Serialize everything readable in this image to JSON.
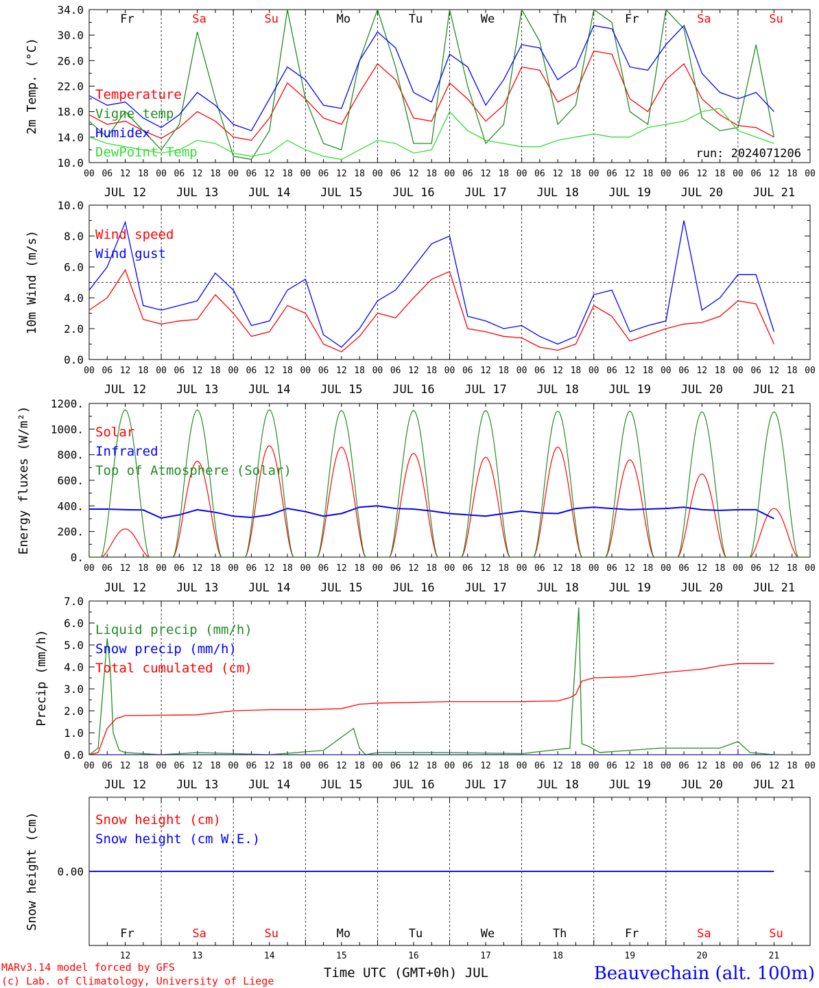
{
  "x_axis": {
    "hour_ticks": [
      "00",
      "06",
      "12",
      "18"
    ],
    "date_labels": [
      "JUL 12",
      "JUL 13",
      "JUL 14",
      "JUL 15",
      "JUL 16",
      "JUL 17",
      "JUL 18",
      "JUL 19",
      "JUL 20",
      "JUL 21"
    ],
    "day_names": [
      "Fr",
      "Sa",
      "Su",
      "Mo",
      "Tu",
      "We",
      "Th",
      "Fr",
      "Sa",
      "Su"
    ],
    "weekend_flags": [
      false,
      true,
      true,
      false,
      false,
      false,
      false,
      false,
      true,
      true
    ],
    "day_numbers": [
      "12",
      "13",
      "14",
      "15",
      "16",
      "17",
      "18",
      "19",
      "20",
      "21"
    ],
    "title": "Time UTC (GMT+0h) JUL"
  },
  "footer": {
    "credit_line1": "MARv3.14 model forced by GFS",
    "credit_line2": "(c) Lab. of Climatology, University of Liege",
    "station": "Beauvechain (alt. 100m)"
  },
  "colors": {
    "red": "#ff0000",
    "green": "#228b22",
    "blue": "#0000ff",
    "lightgreen": "#33dd33",
    "purple": "#7f3f9f"
  },
  "chart_data": [
    {
      "type": "line",
      "ylabel": "2m Temp. (°C)",
      "ylim": [
        10,
        34
      ],
      "y_ticks": [
        "10.0",
        "14.0",
        "18.0",
        "22.0",
        "26.0",
        "30.0",
        "34.0"
      ],
      "annotation": "run: 2024071206",
      "legend_position": "top-left",
      "series": [
        {
          "name": "Temperature",
          "color": "red",
          "x_hours": [
            0,
            6,
            12,
            18,
            24,
            30,
            36,
            42,
            48,
            54,
            60,
            66,
            72,
            78,
            84,
            90,
            96,
            102,
            108,
            114,
            120,
            126,
            132,
            138,
            144,
            150,
            156,
            162,
            168,
            174,
            180,
            186,
            192,
            198,
            204,
            210,
            216,
            222,
            228
          ],
          "values": [
            17.5,
            16.0,
            16.5,
            15.0,
            13.8,
            15.5,
            18.0,
            16.5,
            14.0,
            13.5,
            17.0,
            22.5,
            20.0,
            17.0,
            16.0,
            21.0,
            25.5,
            23.0,
            17.0,
            16.5,
            22.5,
            20.0,
            16.5,
            19.0,
            25.0,
            24.5,
            19.5,
            21.0,
            27.5,
            27.0,
            20.0,
            18.0,
            23.0,
            25.5,
            20.0,
            17.5,
            15.8,
            15.5,
            14.0
          ]
        },
        {
          "name": "Vigne temp",
          "color": "green",
          "x_hours": [
            0,
            6,
            12,
            18,
            24,
            30,
            36,
            42,
            48,
            54,
            60,
            66,
            72,
            78,
            84,
            90,
            96,
            102,
            108,
            114,
            120,
            126,
            132,
            138,
            144,
            150,
            156,
            162,
            168,
            174,
            180,
            186,
            192,
            198,
            204,
            210,
            216,
            222,
            228
          ],
          "values": [
            16.5,
            14.0,
            18.0,
            15.0,
            12.0,
            16.0,
            30.5,
            20.0,
            11.0,
            10.5,
            15.0,
            34.0,
            20.0,
            13.0,
            12.0,
            26.0,
            34.0,
            25.0,
            13.0,
            13.0,
            34.0,
            22.0,
            13.0,
            16.0,
            34.0,
            29.0,
            16.0,
            19.0,
            34.0,
            32.0,
            18.0,
            16.0,
            34.0,
            31.0,
            17.0,
            15.0,
            15.5,
            28.5,
            14.0
          ]
        },
        {
          "name": "Humidex",
          "color": "blue",
          "x_hours": [
            0,
            6,
            12,
            18,
            24,
            30,
            36,
            42,
            48,
            54,
            60,
            66,
            72,
            78,
            84,
            90,
            96,
            102,
            108,
            114,
            120,
            126,
            132,
            138,
            144,
            150,
            156,
            162,
            168,
            174,
            180,
            186,
            192,
            198,
            204,
            210,
            216,
            222,
            228
          ],
          "values": [
            20.5,
            19.0,
            19.5,
            17.0,
            15.5,
            17.5,
            21.0,
            19.0,
            16.0,
            15.0,
            20.0,
            25.0,
            23.0,
            19.0,
            18.5,
            26.0,
            30.5,
            28.0,
            21.0,
            19.5,
            27.0,
            25.0,
            19.0,
            23.0,
            28.5,
            28.0,
            23.0,
            25.0,
            31.5,
            31.0,
            25.0,
            24.5,
            28.5,
            31.5,
            24.0,
            21.0,
            20.0,
            21.0,
            18.0
          ]
        },
        {
          "name": "DewPoint Temp",
          "color": "lightgreen",
          "x_hours": [
            0,
            6,
            12,
            18,
            24,
            30,
            36,
            42,
            48,
            54,
            60,
            66,
            72,
            78,
            84,
            90,
            96,
            102,
            108,
            114,
            120,
            126,
            132,
            138,
            144,
            150,
            156,
            162,
            168,
            174,
            180,
            186,
            192,
            198,
            204,
            210,
            216,
            222,
            228
          ],
          "values": [
            14.0,
            13.0,
            12.5,
            12.0,
            11.5,
            12.0,
            13.5,
            13.0,
            11.5,
            11.0,
            11.5,
            13.5,
            12.0,
            11.0,
            10.5,
            12.0,
            13.5,
            13.0,
            11.5,
            12.0,
            18.0,
            15.0,
            13.5,
            13.0,
            12.5,
            12.5,
            13.5,
            14.0,
            14.5,
            14.0,
            14.0,
            15.5,
            16.0,
            16.5,
            18.0,
            18.5,
            15.0,
            14.0,
            13.0
          ]
        }
      ]
    },
    {
      "type": "line",
      "ylabel": "10m Wind (m/s)",
      "ylim": [
        0,
        10
      ],
      "y_ticks": [
        "0.0",
        "2.0",
        "4.0",
        "6.0",
        "8.0",
        "10.0"
      ],
      "reference_line": 5,
      "legend_position": "top-left",
      "series": [
        {
          "name": "Wind speed",
          "color": "red",
          "x_hours": [
            0,
            6,
            12,
            18,
            24,
            30,
            36,
            42,
            48,
            54,
            60,
            66,
            72,
            78,
            84,
            90,
            96,
            102,
            108,
            114,
            120,
            126,
            132,
            138,
            144,
            150,
            156,
            162,
            168,
            174,
            180,
            186,
            192,
            198,
            204,
            210,
            216,
            222,
            228
          ],
          "values": [
            3.2,
            4.0,
            5.8,
            2.6,
            2.3,
            2.5,
            2.6,
            4.2,
            3.0,
            1.5,
            1.8,
            3.5,
            3.0,
            1.0,
            0.5,
            1.5,
            3.0,
            2.7,
            4.0,
            5.2,
            5.7,
            2.0,
            1.8,
            1.5,
            1.4,
            0.8,
            0.6,
            1.0,
            3.5,
            2.8,
            1.2,
            1.6,
            2.0,
            2.3,
            2.4,
            2.8,
            3.8,
            3.6,
            1.0
          ]
        },
        {
          "name": "Wind gust",
          "color": "blue",
          "x_hours": [
            0,
            6,
            12,
            18,
            24,
            30,
            36,
            42,
            48,
            54,
            60,
            66,
            72,
            78,
            84,
            90,
            96,
            102,
            108,
            114,
            120,
            126,
            132,
            138,
            144,
            150,
            156,
            162,
            168,
            174,
            180,
            186,
            192,
            198,
            204,
            210,
            216,
            222,
            228
          ],
          "values": [
            4.5,
            6.0,
            8.9,
            3.5,
            3.2,
            3.5,
            3.8,
            5.6,
            4.5,
            2.2,
            2.5,
            4.5,
            5.2,
            1.6,
            0.8,
            2.0,
            3.8,
            4.5,
            6.0,
            7.5,
            8.0,
            2.8,
            2.5,
            2.0,
            2.2,
            1.5,
            1.0,
            1.5,
            4.2,
            4.5,
            1.8,
            2.2,
            2.5,
            9.0,
            3.2,
            4.0,
            5.5,
            5.5,
            1.8
          ]
        }
      ]
    },
    {
      "type": "line",
      "ylabel": "Energy fluxes (W/m²)",
      "ylim": [
        0,
        1200
      ],
      "y_ticks": [
        "0.",
        "200.",
        "400.",
        "600.",
        "800.",
        "1000.",
        "1200."
      ],
      "legend_position": "top-left",
      "series": [
        {
          "name": "Solar",
          "color": "red",
          "peaks": [
            220,
            750,
            870,
            860,
            810,
            780,
            860,
            760,
            650,
            380
          ]
        },
        {
          "name": "Infrared",
          "color": "blue",
          "x_hours": [
            0,
            6,
            12,
            18,
            24,
            30,
            36,
            42,
            48,
            54,
            60,
            66,
            72,
            78,
            84,
            90,
            96,
            102,
            108,
            114,
            120,
            126,
            132,
            138,
            144,
            150,
            156,
            162,
            168,
            174,
            180,
            186,
            192,
            198,
            204,
            210,
            216,
            222,
            228
          ],
          "values": [
            375,
            375,
            370,
            368,
            305,
            330,
            370,
            350,
            320,
            310,
            330,
            380,
            355,
            320,
            340,
            390,
            400,
            380,
            375,
            360,
            340,
            330,
            320,
            340,
            360,
            345,
            340,
            380,
            390,
            380,
            370,
            375,
            380,
            390,
            370,
            365,
            370,
            370,
            300
          ]
        },
        {
          "name": "Top of Atmosphere (Solar)",
          "color": "green",
          "peaks": [
            1150,
            1150,
            1150,
            1145,
            1145,
            1145,
            1140,
            1140,
            1135,
            1135
          ]
        }
      ]
    },
    {
      "type": "line",
      "ylabel": "Precip (mm/h)",
      "ylim": [
        0,
        7
      ],
      "y_ticks": [
        "0.0",
        "1.0",
        "2.0",
        "3.0",
        "4.0",
        "5.0",
        "6.0",
        "7.0"
      ],
      "legend_position": "top-left",
      "series": [
        {
          "name": "Liquid precip (mm/h)",
          "color": "green",
          "x_hours": [
            0,
            3,
            6,
            7,
            8,
            10,
            12,
            18,
            24,
            36,
            48,
            60,
            78,
            88,
            90,
            92,
            96,
            120,
            144,
            160,
            163,
            164,
            166,
            170,
            190,
            210,
            216,
            220,
            228
          ],
          "values": [
            0,
            0.3,
            5.3,
            4.0,
            1.0,
            0.2,
            0.1,
            0.05,
            0,
            0.1,
            0.05,
            0,
            0.2,
            1.2,
            0.3,
            0,
            0.1,
            0.1,
            0.05,
            0.3,
            6.7,
            0.5,
            0.4,
            0.1,
            0.3,
            0.3,
            0.6,
            0.1,
            0
          ]
        },
        {
          "name": "Snow precip (mm/h)",
          "color": "blue",
          "x_hours": [
            0,
            228
          ],
          "values": [
            0,
            0
          ]
        },
        {
          "name": "Total cumulated (cm)",
          "color": "red",
          "x_hours": [
            0,
            3,
            6,
            9,
            12,
            24,
            36,
            48,
            60,
            72,
            84,
            90,
            96,
            120,
            144,
            156,
            160,
            162,
            164,
            168,
            180,
            192,
            204,
            210,
            216,
            228
          ],
          "values": [
            0,
            0.1,
            1.2,
            1.65,
            1.78,
            1.8,
            1.82,
            2.0,
            2.05,
            2.05,
            2.1,
            2.3,
            2.35,
            2.42,
            2.42,
            2.45,
            2.6,
            2.75,
            3.35,
            3.5,
            3.55,
            3.75,
            3.9,
            4.05,
            4.15,
            4.15
          ]
        }
      ]
    },
    {
      "type": "line",
      "ylabel": "Snow height (cm)",
      "y_ticks": [
        "0.00"
      ],
      "legend_position": "top-left",
      "series": [
        {
          "name": "Snow height (cm)",
          "color": "red",
          "x_hours": [
            0,
            228
          ],
          "values": [
            0,
            0
          ]
        },
        {
          "name": "Snow height (cm W.E.)",
          "color": "blue",
          "x_hours": [
            0,
            228
          ],
          "values": [
            0,
            0
          ]
        }
      ]
    }
  ]
}
